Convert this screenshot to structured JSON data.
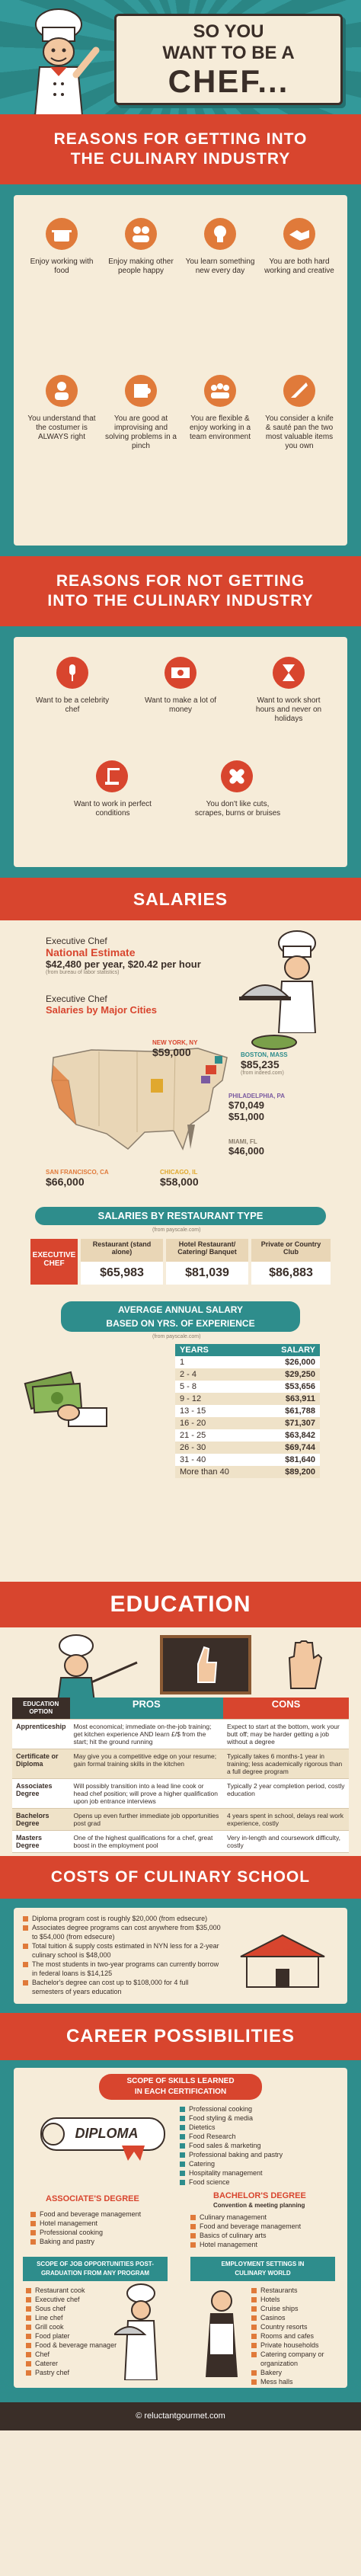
{
  "header": {
    "title_lines": [
      "SO YOU",
      "WANT TO BE A",
      "CHEF..."
    ]
  },
  "reasons_for": {
    "title_lines": [
      "REASONS FOR GETTING INTO",
      "THE CULINARY INDUSTRY"
    ],
    "items": [
      {
        "icon": "pot-icon",
        "text": "Enjoy working with food"
      },
      {
        "icon": "people-icon",
        "text": "Enjoy making other people happy"
      },
      {
        "icon": "lightbulb-icon",
        "text": "You learn something new every day"
      },
      {
        "icon": "handshake-icon",
        "text": "You are both hard working and creative"
      },
      {
        "icon": "customer-icon",
        "text": "You understand that the costumer is ALWAYS right"
      },
      {
        "icon": "puzzle-icon",
        "text": "You are good at improvising and solving problems in a pinch"
      },
      {
        "icon": "team-icon",
        "text": "You are flexible & enjoy working in a team environment"
      },
      {
        "icon": "knife-icon",
        "text": "You consider a knife & sauté pan the two most valuable items you own"
      }
    ]
  },
  "reasons_against": {
    "title_lines": [
      "REASONS FOR NOT GETTING",
      "INTO THE CULINARY INDUSTRY"
    ],
    "items": [
      {
        "icon": "microphone-icon",
        "text": "Want to be a celebrity chef"
      },
      {
        "icon": "money-icon",
        "text": "Want to make a lot of money"
      },
      {
        "icon": "hourglass-icon",
        "text": "Want to work short hours and never on holidays"
      },
      {
        "icon": "crane-icon",
        "text": "Want to work in perfect conditions"
      },
      {
        "icon": "bandage-icon",
        "text": "You don't like cuts, scrapes, burns or bruises"
      }
    ]
  },
  "salaries": {
    "title": "SALARIES",
    "national_label": "Executive Chef",
    "national_sub": "National Estimate",
    "national_value": "$42,480 per year, $20.42 per hour",
    "national_source": "(from bureau of labor statistics)",
    "cities_label": "Executive Chef",
    "cities_sub": "Salaries by Major Cities",
    "source": "(from indeed.com)",
    "cities": [
      {
        "name": "NEW YORK, NY",
        "value": "$59,000",
        "color": "#d8452e"
      },
      {
        "name": "BOSTON, MASS",
        "value": "$85,235",
        "color": "#2e8d8c"
      },
      {
        "name": "PHILADELPHIA, PA",
        "value": "$70,049",
        "value2": "$51,000",
        "color": "#7a5aa0"
      },
      {
        "name": "MIAMI, FL",
        "value": "$46,000",
        "color": "#8a7d6c"
      },
      {
        "name": "SAN FRANCISCO, CA",
        "value": "$66,000",
        "color": "#e07a3a"
      },
      {
        "name": "CHICAGO, IL",
        "value": "$58,000",
        "color": "#e0a82e"
      }
    ],
    "by_type_title": "SALARIES BY RESTAURANT TYPE",
    "by_type_source": "(from payscale.com)",
    "row_label": "EXECUTIVE CHEF",
    "types": [
      {
        "name": "Restaurant (stand alone)",
        "value": "$65,983"
      },
      {
        "name": "Hotel Restaurant/ Catering/ Banquet",
        "value": "$81,039"
      },
      {
        "name": "Private or Country Club",
        "value": "$86,883"
      }
    ],
    "exp_title_lines": [
      "AVERAGE ANNUAL SALARY",
      "BASED ON YRS. OF EXPERIENCE"
    ],
    "exp_source": "(from payscale.com)",
    "exp_head": [
      "YEARS",
      "SALARY"
    ],
    "exp_rows": [
      [
        "1",
        "$26,000"
      ],
      [
        "2 - 4",
        "$29,250"
      ],
      [
        "5 - 8",
        "$53,656"
      ],
      [
        "9 - 12",
        "$63,911"
      ],
      [
        "13 - 15",
        "$61,788"
      ],
      [
        "16 - 20",
        "$71,307"
      ],
      [
        "21 - 25",
        "$63,842"
      ],
      [
        "26 - 30",
        "$69,744"
      ],
      [
        "31 - 40",
        "$81,640"
      ],
      [
        "More than 40",
        "$89,200"
      ]
    ]
  },
  "education": {
    "title": "EDUCATION",
    "head": [
      "EDUCATION OPTION",
      "PROS",
      "CONS"
    ],
    "rows": [
      {
        "option": "Apprenticeship",
        "pros": "Most economical; immediate on-the-job training; get kitchen experience AND learn £/$ from the start; hit the ground running",
        "cons": "Expect to start at the bottom, work your butt off; may be harder getting a job without a degree"
      },
      {
        "option": "Certificate or Diploma",
        "pros": "May give you a competitive edge on your resume; gain formal training skills in the kitchen",
        "cons": "Typically takes 6 months-1 year in training; less academically rigorous than a full degree program"
      },
      {
        "option": "Associates Degree",
        "pros": "Will possibly transition into a lead line cook or head chef position; will prove a higher qualification upon job entrance interviews",
        "cons": "Typically 2 year completion period, costly education"
      },
      {
        "option": "Bachelors Degree",
        "pros": "Opens up even further immediate job opportunities post grad",
        "cons": "4 years spent in school, delays real work experience, costly"
      },
      {
        "option": "Masters Degree",
        "pros": "One of the highest qualifications for a chef, great boost in the employment pool",
        "cons": "Very in-length and coursework difficulty, costly"
      }
    ]
  },
  "costs": {
    "title": "COSTS OF CULINARY SCHOOL",
    "bullets": [
      "Diploma program cost is roughly $20,000 (from edsecure)",
      "Associates degree programs can cost anywhere from $35,000 to $54,000 (from edsecure)",
      "Total tuition & supply costs estimated in NYN less for a 2-year culinary school is $48,000",
      "The most students in two-year programs can currently borrow in federal loans is $14,125",
      "Bachelor's degree can cost up to $108,000 for 4 full semesters of years education"
    ],
    "sign": "SCHOOL"
  },
  "career": {
    "title": "CAREER POSSIBILITIES",
    "scope_title_lines": [
      "SCOPE OF SKILLS LEARNED",
      "IN EACH CERTIFICATION"
    ],
    "diploma_label": "DIPLOMA",
    "diploma_skills": [
      "Professional cooking",
      "Food styling & media",
      "Dietetics",
      "Food Research",
      "Food sales & marketing",
      "Professional baking and pastry",
      "Catering",
      "Hospitality management",
      "Food science"
    ],
    "associates_title": "ASSOCIATE'S DEGREE",
    "associates_skills": [
      "Food and beverage management",
      "Hotel management",
      "Professional cooking",
      "Baking and pastry"
    ],
    "bachelors_title": "BACHELOR'S DEGREE",
    "bachelors_sub": "Convention & meeting planning",
    "bachelors_skills": [
      "Culinary management",
      "Food and beverage management",
      "Basics of culinary arts",
      "Hotel management"
    ],
    "jobs_title_lines": [
      "SCOPE OF JOB OPPORTUNITIES POST-",
      "GRADUATION FROM ANY PROGRAM"
    ],
    "jobs": [
      "Restaurant cook",
      "Executive chef",
      "Sous chef",
      "Line chef",
      "Grill cook",
      "Food plater",
      "Food & beverage manager",
      "Chef",
      "Caterer",
      "Pastry chef"
    ],
    "settings_title_lines": [
      "EMPLOYMENT SETTINGS IN",
      "CULINARY WORLD"
    ],
    "settings": [
      "Restaurants",
      "Hotels",
      "Cruise ships",
      "Casinos",
      "Country resorts",
      "Rooms and cafes",
      "Private households",
      "Catering company or organization",
      "Bakery",
      "Mess halls"
    ]
  },
  "footer": {
    "credit": "© reluctantgourmet.com"
  }
}
